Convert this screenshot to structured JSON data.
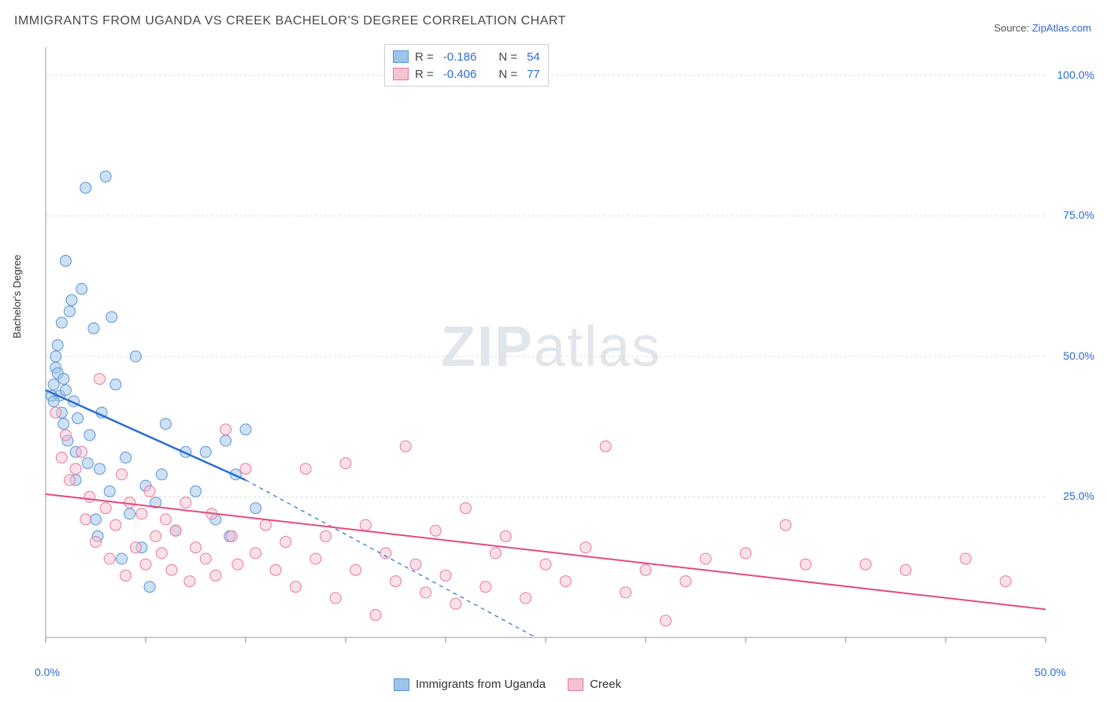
{
  "title": "IMMIGRANTS FROM UGANDA VS CREEK BACHELOR'S DEGREE CORRELATION CHART",
  "source_label": "Source:",
  "source_name": "ZipAtlas.com",
  "y_axis_label": "Bachelor's Degree",
  "watermark_a": "ZIP",
  "watermark_b": "atlas",
  "chart": {
    "type": "scatter",
    "background_color": "#ffffff",
    "grid_color": "#d9d9d9",
    "grid_dash": "3,3",
    "xlim": [
      0,
      50
    ],
    "ylim": [
      0,
      105
    ],
    "x_ticks": [
      0,
      5,
      10,
      15,
      20,
      25,
      30,
      35,
      40,
      45,
      50
    ],
    "x_tick_labels": {
      "0": "0.0%",
      "50": "50.0%"
    },
    "y_ticks": [
      0,
      25,
      50,
      75,
      100
    ],
    "y_tick_labels": {
      "25": "25.0%",
      "50": "50.0%",
      "75": "75.0%",
      "100": "100.0%"
    },
    "marker_radius": 7,
    "marker_opacity": 0.5,
    "axis_label_fontsize": 13,
    "tick_label_color": "#2b6cd4",
    "tick_label_fontsize": 14
  },
  "series": [
    {
      "name": "Immigrants from Uganda",
      "fill": "#9ec4ea",
      "stroke": "#5a94d6",
      "line_color": "#2b6cd4",
      "line_width": 2.5,
      "R": "-0.186",
      "N": "54",
      "regression": {
        "x1": 0,
        "y1": 44,
        "x2": 10,
        "y2": 28,
        "dash_x2": 24.5,
        "dash_y2": 0
      },
      "points": [
        [
          0.3,
          43
        ],
        [
          0.4,
          45
        ],
        [
          0.5,
          48
        ],
        [
          0.5,
          50
        ],
        [
          0.6,
          52
        ],
        [
          0.6,
          47
        ],
        [
          0.7,
          43
        ],
        [
          0.8,
          40
        ],
        [
          0.8,
          56
        ],
        [
          0.9,
          38
        ],
        [
          1.0,
          67
        ],
        [
          1.0,
          44
        ],
        [
          1.1,
          35
        ],
        [
          1.2,
          58
        ],
        [
          1.3,
          60
        ],
        [
          1.4,
          42
        ],
        [
          1.5,
          33
        ],
        [
          1.5,
          28
        ],
        [
          1.8,
          62
        ],
        [
          2.0,
          80
        ],
        [
          2.2,
          36
        ],
        [
          2.4,
          55
        ],
        [
          2.5,
          21
        ],
        [
          2.6,
          18
        ],
        [
          2.7,
          30
        ],
        [
          2.8,
          40
        ],
        [
          3.0,
          82
        ],
        [
          3.2,
          26
        ],
        [
          3.3,
          57
        ],
        [
          3.5,
          45
        ],
        [
          3.8,
          14
        ],
        [
          4.0,
          32
        ],
        [
          4.2,
          22
        ],
        [
          4.5,
          50
        ],
        [
          4.8,
          16
        ],
        [
          5.0,
          27
        ],
        [
          5.2,
          9
        ],
        [
          5.5,
          24
        ],
        [
          5.8,
          29
        ],
        [
          6.0,
          38
        ],
        [
          6.5,
          19
        ],
        [
          7.0,
          33
        ],
        [
          7.5,
          26
        ],
        [
          8.0,
          33
        ],
        [
          8.5,
          21
        ],
        [
          9.0,
          35
        ],
        [
          9.2,
          18
        ],
        [
          9.5,
          29
        ],
        [
          10.0,
          37
        ],
        [
          10.5,
          23
        ],
        [
          0.4,
          42
        ],
        [
          1.6,
          39
        ],
        [
          2.1,
          31
        ],
        [
          0.9,
          46
        ]
      ]
    },
    {
      "name": "Creek",
      "fill": "#f4c4d1",
      "stroke": "#e879a0",
      "line_color": "#e54b7b",
      "line_width": 2,
      "R": "-0.406",
      "N": "77",
      "regression": {
        "x1": 0,
        "y1": 25.5,
        "x2": 50,
        "y2": 5
      },
      "points": [
        [
          0.5,
          40
        ],
        [
          0.8,
          32
        ],
        [
          1.0,
          36
        ],
        [
          1.2,
          28
        ],
        [
          1.5,
          30
        ],
        [
          1.8,
          33
        ],
        [
          2.0,
          21
        ],
        [
          2.2,
          25
        ],
        [
          2.5,
          17
        ],
        [
          2.7,
          46
        ],
        [
          3.0,
          23
        ],
        [
          3.2,
          14
        ],
        [
          3.5,
          20
        ],
        [
          3.8,
          29
        ],
        [
          4.0,
          11
        ],
        [
          4.2,
          24
        ],
        [
          4.5,
          16
        ],
        [
          4.8,
          22
        ],
        [
          5.0,
          13
        ],
        [
          5.2,
          26
        ],
        [
          5.5,
          18
        ],
        [
          5.8,
          15
        ],
        [
          6.0,
          21
        ],
        [
          6.3,
          12
        ],
        [
          6.5,
          19
        ],
        [
          7.0,
          24
        ],
        [
          7.2,
          10
        ],
        [
          7.5,
          16
        ],
        [
          8.0,
          14
        ],
        [
          8.3,
          22
        ],
        [
          8.5,
          11
        ],
        [
          9.0,
          37
        ],
        [
          9.3,
          18
        ],
        [
          9.6,
          13
        ],
        [
          10.0,
          30
        ],
        [
          10.5,
          15
        ],
        [
          11.0,
          20
        ],
        [
          11.5,
          12
        ],
        [
          12.0,
          17
        ],
        [
          12.5,
          9
        ],
        [
          13.0,
          30
        ],
        [
          13.5,
          14
        ],
        [
          14.0,
          18
        ],
        [
          14.5,
          7
        ],
        [
          15.0,
          31
        ],
        [
          15.5,
          12
        ],
        [
          16.0,
          20
        ],
        [
          16.5,
          4
        ],
        [
          17.0,
          15
        ],
        [
          17.5,
          10
        ],
        [
          18.0,
          34
        ],
        [
          18.5,
          13
        ],
        [
          19.0,
          8
        ],
        [
          19.5,
          19
        ],
        [
          20.0,
          11
        ],
        [
          20.5,
          6
        ],
        [
          21,
          23
        ],
        [
          22,
          9
        ],
        [
          22.5,
          15
        ],
        [
          23,
          18
        ],
        [
          24,
          7
        ],
        [
          25,
          13
        ],
        [
          26,
          10
        ],
        [
          27,
          16
        ],
        [
          28,
          34
        ],
        [
          29,
          8
        ],
        [
          30,
          12
        ],
        [
          31,
          3
        ],
        [
          32,
          10
        ],
        [
          33,
          14
        ],
        [
          35,
          15
        ],
        [
          37,
          20
        ],
        [
          38,
          13
        ],
        [
          41,
          13
        ],
        [
          43,
          12
        ],
        [
          46,
          14
        ],
        [
          48,
          10
        ]
      ]
    }
  ],
  "stat_legend_labels": {
    "R": "R =",
    "N": "N ="
  },
  "bottom_legend": [
    "Immigrants from Uganda",
    "Creek"
  ]
}
